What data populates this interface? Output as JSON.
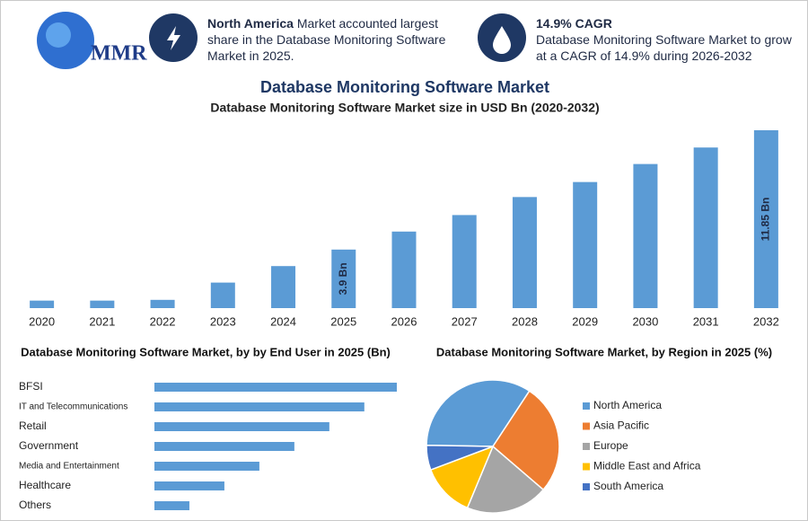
{
  "header": {
    "logo": "MMR",
    "highlights": [
      {
        "bold": "North America",
        "text": "Market accounted largest share in the Database Monitoring Software Market in 2025."
      },
      {
        "bold": "14.9% CAGR",
        "text": "Database Monitoring Software Market to grow at a CAGR of 14.9% during 2026-2032"
      }
    ]
  },
  "title": "Database Monitoring Software Market",
  "chart_data": [
    {
      "type": "bar",
      "title": "Database Monitoring Software Market size in USD Bn (2020-2032)",
      "categories": [
        "2020",
        "2021",
        "2022",
        "2023",
        "2024",
        "2025",
        "2026",
        "2027",
        "2028",
        "2029",
        "2030",
        "2031",
        "2032"
      ],
      "values": [
        0.5,
        0.5,
        0.55,
        1.7,
        2.8,
        3.9,
        5.1,
        6.2,
        7.4,
        8.4,
        9.6,
        10.7,
        11.85
      ],
      "value_labels": [
        null,
        null,
        null,
        null,
        null,
        "3.9 Bn",
        null,
        null,
        null,
        null,
        null,
        null,
        "11.85 Bn"
      ],
      "color": "#5b9bd5"
    },
    {
      "type": "barh",
      "title": "Database Monitoring Software Market, by by End User in 2025 (Bn)",
      "categories": [
        "BFSI",
        "IT and Telecommunications",
        "Retail",
        "Government",
        "Media and Entertainment",
        "Healthcare",
        "Others"
      ],
      "values": [
        0.97,
        0.84,
        0.7,
        0.56,
        0.42,
        0.28,
        0.14
      ],
      "color": "#5b9bd5"
    },
    {
      "type": "pie",
      "title": "Database Monitoring Software Market, by Region in 2025 (%)",
      "categories": [
        "North America",
        "Asia Pacific",
        "Europe",
        "Middle East and Africa",
        "South America"
      ],
      "values": [
        34,
        27,
        20,
        13,
        6
      ],
      "colors": [
        "#5b9bd5",
        "#ed7d31",
        "#a5a5a5",
        "#ffc000",
        "#4472c4"
      ],
      "legend": "right"
    }
  ]
}
